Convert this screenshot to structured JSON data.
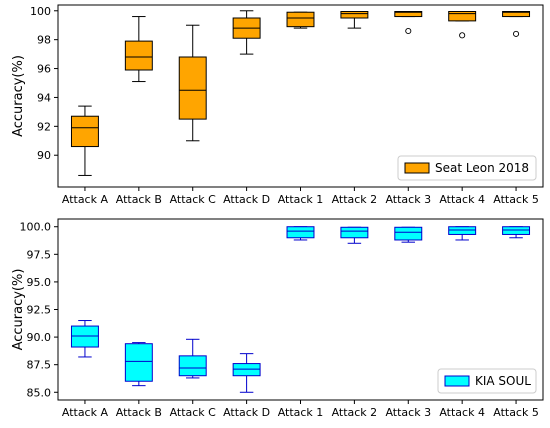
{
  "chart_data": [
    {
      "type": "box",
      "ylabel": "Accuracy(%)",
      "ylim": [
        87.8,
        100.4
      ],
      "yticks": [
        90,
        92,
        94,
        96,
        98,
        100
      ],
      "grid": false,
      "legend": {
        "position": "lower-right",
        "label": "Seat Leon 2018"
      },
      "colors": {
        "fill": "#FFA500",
        "line": "#000000",
        "median": "#000000"
      },
      "categories": [
        "Attack A",
        "Attack B",
        "Attack C",
        "Attack D",
        "Attack 1",
        "Attack 2",
        "Attack 3",
        "Attack 4",
        "Attack 5"
      ],
      "boxes": [
        {
          "whisker_low": 88.6,
          "q1": 90.6,
          "median": 91.9,
          "q3": 92.7,
          "whisker_high": 93.4,
          "outliers": []
        },
        {
          "whisker_low": 95.1,
          "q1": 95.9,
          "median": 96.8,
          "q3": 97.9,
          "whisker_high": 99.6,
          "outliers": []
        },
        {
          "whisker_low": 91.0,
          "q1": 92.5,
          "median": 94.5,
          "q3": 96.8,
          "whisker_high": 99.0,
          "outliers": []
        },
        {
          "whisker_low": 97.0,
          "q1": 98.1,
          "median": 98.8,
          "q3": 99.5,
          "whisker_high": 100.0,
          "outliers": []
        },
        {
          "whisker_low": 98.8,
          "q1": 98.9,
          "median": 99.5,
          "q3": 99.9,
          "whisker_high": 99.9,
          "outliers": []
        },
        {
          "whisker_low": 98.8,
          "q1": 99.5,
          "median": 99.8,
          "q3": 99.95,
          "whisker_high": 99.95,
          "outliers": []
        },
        {
          "whisker_low": 99.6,
          "q1": 99.6,
          "median": 99.9,
          "q3": 99.95,
          "whisker_high": 99.95,
          "outliers": [
            98.6
          ]
        },
        {
          "whisker_low": 99.3,
          "q1": 99.3,
          "median": 99.8,
          "q3": 99.95,
          "whisker_high": 99.95,
          "outliers": [
            98.3
          ]
        },
        {
          "whisker_low": 99.6,
          "q1": 99.6,
          "median": 99.9,
          "q3": 99.95,
          "whisker_high": 99.95,
          "outliers": [
            98.4
          ]
        }
      ]
    },
    {
      "type": "box",
      "ylabel": "Accuracy(%)",
      "ylim": [
        84.3,
        100.7
      ],
      "yticks": [
        85.0,
        87.5,
        90.0,
        92.5,
        95.0,
        97.5,
        100.0
      ],
      "grid": false,
      "legend": {
        "position": "lower-right",
        "label": "KIA SOUL"
      },
      "colors": {
        "fill": "#00FFFF",
        "line": "#0000CC",
        "median": "#0000CC"
      },
      "categories": [
        "Attack A",
        "Attack B",
        "Attack C",
        "Attack D",
        "Attack 1",
        "Attack 2",
        "Attack 3",
        "Attack 4",
        "Attack 5"
      ],
      "boxes": [
        {
          "whisker_low": 88.2,
          "q1": 89.1,
          "median": 90.1,
          "q3": 91.0,
          "whisker_high": 91.5,
          "outliers": []
        },
        {
          "whisker_low": 85.6,
          "q1": 86.0,
          "median": 87.8,
          "q3": 89.4,
          "whisker_high": 89.5,
          "outliers": []
        },
        {
          "whisker_low": 86.3,
          "q1": 86.5,
          "median": 87.2,
          "q3": 88.3,
          "whisker_high": 89.8,
          "outliers": []
        },
        {
          "whisker_low": 85.0,
          "q1": 86.5,
          "median": 87.1,
          "q3": 87.6,
          "whisker_high": 88.5,
          "outliers": []
        },
        {
          "whisker_low": 98.8,
          "q1": 99.0,
          "median": 99.6,
          "q3": 100.0,
          "whisker_high": 100.0,
          "outliers": []
        },
        {
          "whisker_low": 98.5,
          "q1": 99.0,
          "median": 99.6,
          "q3": 99.95,
          "whisker_high": 99.95,
          "outliers": []
        },
        {
          "whisker_low": 98.6,
          "q1": 98.8,
          "median": 99.5,
          "q3": 99.95,
          "whisker_high": 99.95,
          "outliers": []
        },
        {
          "whisker_low": 98.8,
          "q1": 99.3,
          "median": 99.7,
          "q3": 100.0,
          "whisker_high": 100.0,
          "outliers": []
        },
        {
          "whisker_low": 99.0,
          "q1": 99.3,
          "median": 99.7,
          "q3": 100.0,
          "whisker_high": 100.0,
          "outliers": []
        }
      ]
    }
  ]
}
